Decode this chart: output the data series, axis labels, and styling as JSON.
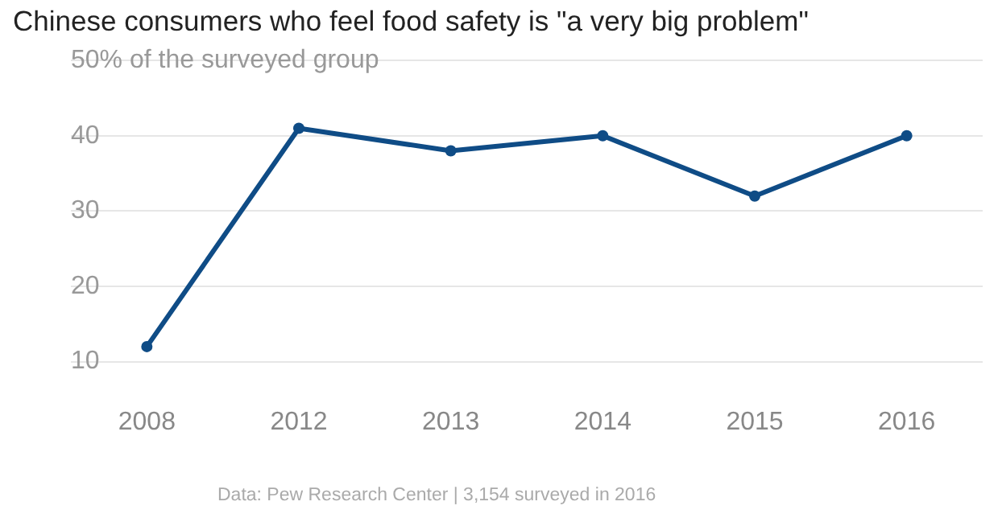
{
  "chart_data": {
    "type": "line",
    "title": "Chinese consumers who feel food safety is \"a very big problem\"",
    "categories": [
      "2008",
      "2012",
      "2013",
      "2014",
      "2015",
      "2016"
    ],
    "values": [
      12,
      41,
      38,
      40,
      32,
      40
    ],
    "color": "#0f4c86",
    "ylim": [
      10,
      50
    ],
    "yticks": [
      10,
      20,
      30,
      40,
      {
        "value": 50,
        "label": "50% of the surveyed group"
      }
    ],
    "grid": "y",
    "marker": "circle",
    "annotations": [
      "Data: Pew Research Center | 3,154 surveyed in 2016"
    ]
  }
}
